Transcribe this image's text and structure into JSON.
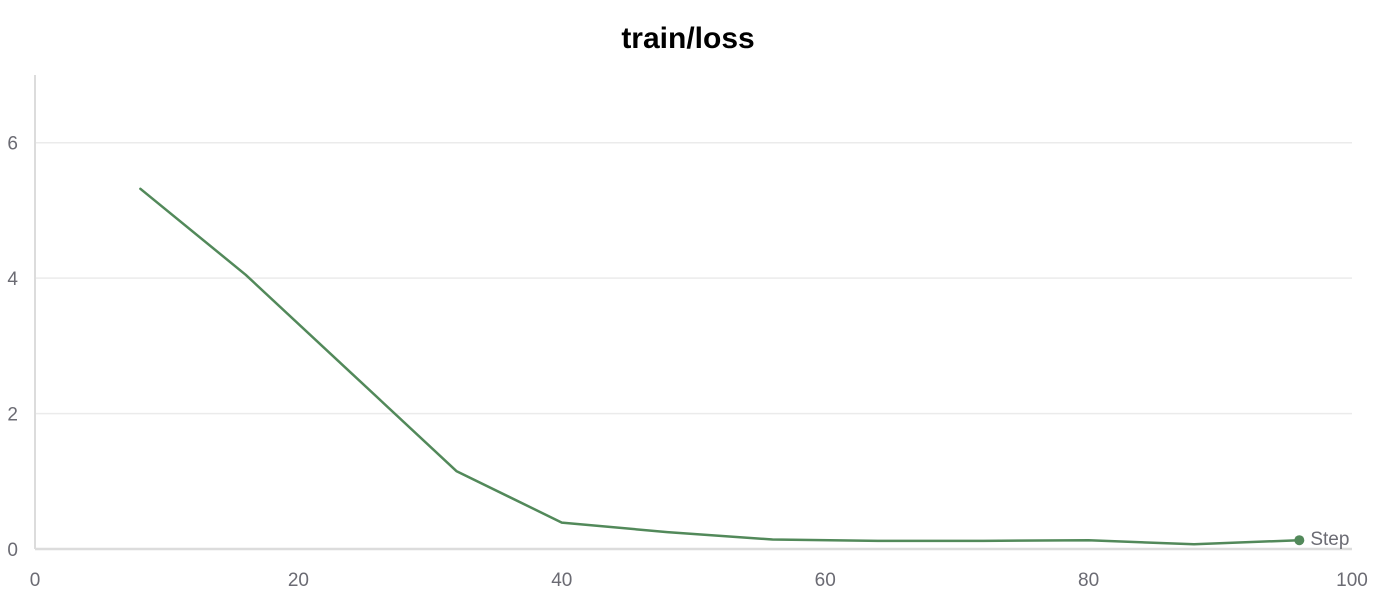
{
  "chart_data": {
    "type": "line",
    "title": "train/loss",
    "xlabel": "",
    "ylabel": "",
    "xlim": [
      0,
      100
    ],
    "ylim": [
      0,
      7
    ],
    "x_ticks": [
      0,
      20,
      40,
      60,
      80,
      100
    ],
    "y_ticks": [
      0,
      2,
      4,
      6
    ],
    "grid": true,
    "series": [
      {
        "color": "#52895a",
        "x": [
          8,
          16,
          24,
          32,
          40,
          48,
          56,
          64,
          72,
          80,
          88,
          96
        ],
        "y": [
          5.32,
          4.05,
          2.6,
          1.15,
          0.39,
          0.25,
          0.14,
          0.12,
          0.12,
          0.13,
          0.07,
          0.13
        ]
      }
    ],
    "end_label": "Step"
  },
  "colors": {
    "line": "#52895a",
    "grid": "#ebebeb",
    "axis": "#dcdcdc",
    "tick_text": "#6b6b73"
  }
}
